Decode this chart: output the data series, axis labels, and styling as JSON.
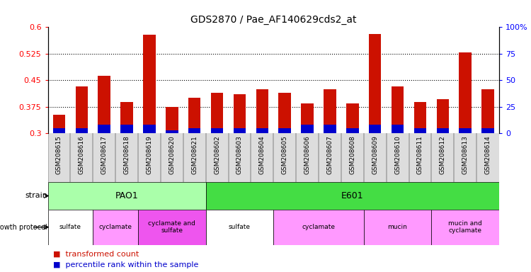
{
  "title": "GDS2870 / Pae_AF140629cds2_at",
  "samples": [
    "GSM208615",
    "GSM208616",
    "GSM208617",
    "GSM208618",
    "GSM208619",
    "GSM208620",
    "GSM208621",
    "GSM208602",
    "GSM208603",
    "GSM208604",
    "GSM208605",
    "GSM208606",
    "GSM208607",
    "GSM208608",
    "GSM208609",
    "GSM208610",
    "GSM208611",
    "GSM208612",
    "GSM208613",
    "GSM208614"
  ],
  "transformed_count": [
    0.352,
    0.432,
    0.462,
    0.388,
    0.578,
    0.375,
    0.4,
    0.415,
    0.41,
    0.425,
    0.415,
    0.385,
    0.425,
    0.385,
    0.58,
    0.432,
    0.388,
    0.397,
    0.528,
    0.425
  ],
  "percentile_rank": [
    5,
    5,
    8,
    8,
    8,
    3,
    5,
    5,
    5,
    5,
    5,
    8,
    8,
    5,
    8,
    8,
    5,
    5,
    5,
    5
  ],
  "ylim_left": [
    0.3,
    0.6
  ],
  "ylim_right": [
    0,
    100
  ],
  "yticks_left": [
    0.3,
    0.375,
    0.45,
    0.525,
    0.6
  ],
  "yticks_right": [
    0,
    25,
    50,
    75,
    100
  ],
  "bar_width": 0.55,
  "red_color": "#cc1100",
  "blue_color": "#0000cc",
  "strain_blocks": [
    {
      "label": "PAO1",
      "start": 0,
      "end": 6,
      "color": "#aaffaa"
    },
    {
      "label": "E601",
      "start": 7,
      "end": 19,
      "color": "#44dd44"
    }
  ],
  "growth_blocks": [
    {
      "label": "sulfate",
      "start": 0,
      "end": 1,
      "color": "#ffffff"
    },
    {
      "label": "cyclamate",
      "start": 2,
      "end": 3,
      "color": "#ff99ff"
    },
    {
      "label": "cyclamate and\nsulfate",
      "start": 4,
      "end": 6,
      "color": "#ee55ee"
    },
    {
      "label": "sulfate",
      "start": 7,
      "end": 9,
      "color": "#ffffff"
    },
    {
      "label": "cyclamate",
      "start": 10,
      "end": 13,
      "color": "#ff99ff"
    },
    {
      "label": "mucin",
      "start": 14,
      "end": 16,
      "color": "#ff99ff"
    },
    {
      "label": "mucin and\ncyclamate",
      "start": 17,
      "end": 19,
      "color": "#ff99ff"
    }
  ],
  "legend": [
    {
      "label": "transformed count",
      "color": "#cc1100"
    },
    {
      "label": "percentile rank within the sample",
      "color": "#0000cc"
    }
  ]
}
